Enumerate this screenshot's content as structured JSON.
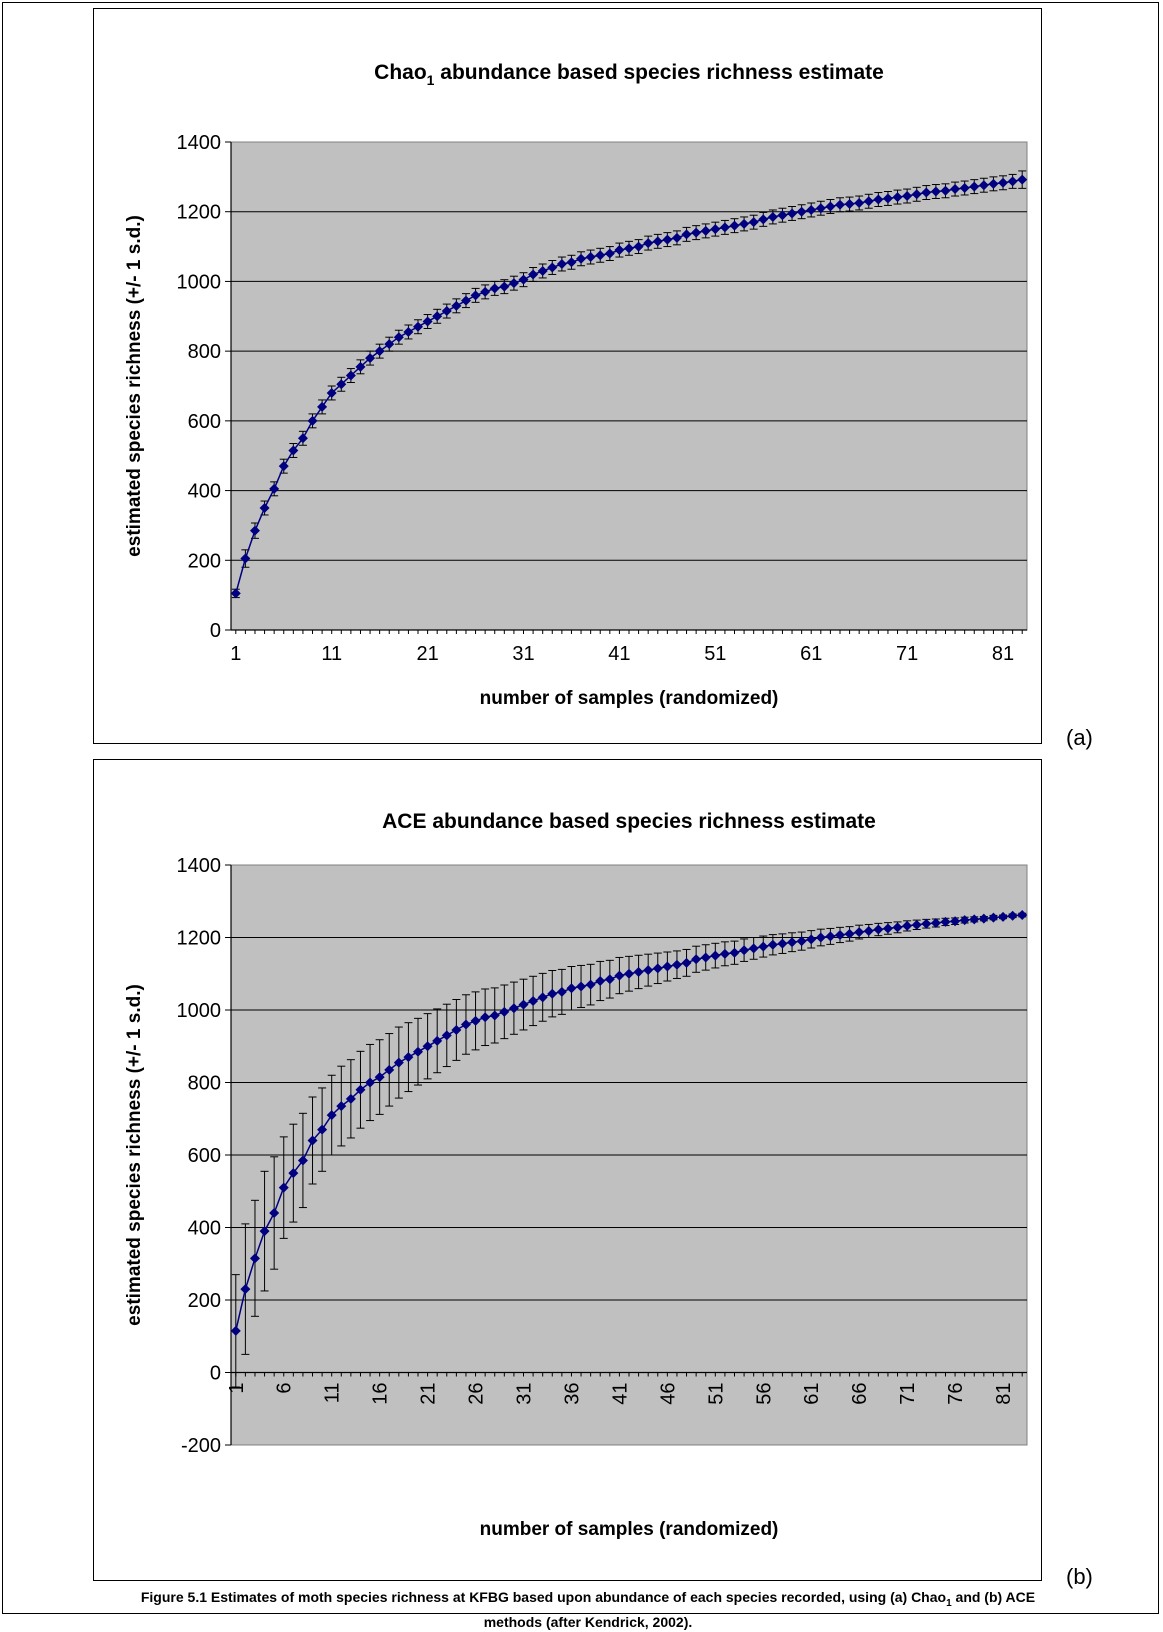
{
  "chart_data": [
    {
      "id": "a",
      "type": "line",
      "panel_label": "(a)",
      "title_main": "Chao",
      "title_sub": "1",
      "title_rest": " abundance based species richness estimate",
      "xlabel": "number of samples (randomized)",
      "ylabel": "estimated species richness (+/- 1 s.d.)",
      "ylim": [
        0,
        1400
      ],
      "yticks": [
        0,
        200,
        400,
        600,
        800,
        1000,
        1200,
        1400
      ],
      "xlim": [
        1,
        83
      ],
      "xtick_labels": [
        "1",
        "11",
        "21",
        "31",
        "41",
        "51",
        "61",
        "71",
        "81"
      ],
      "xtick_values": [
        1,
        11,
        21,
        31,
        41,
        51,
        61,
        71,
        81
      ],
      "grid": "horizontal",
      "plot_background": "#c0c0c0",
      "series_color": "#000080",
      "error_bars": "+/- 1 s.d.",
      "x": [
        1,
        2,
        3,
        4,
        5,
        6,
        7,
        8,
        9,
        10,
        11,
        12,
        13,
        14,
        15,
        16,
        17,
        18,
        19,
        20,
        21,
        22,
        23,
        24,
        25,
        26,
        27,
        28,
        29,
        30,
        31,
        32,
        33,
        34,
        35,
        36,
        37,
        38,
        39,
        40,
        41,
        42,
        43,
        44,
        45,
        46,
        47,
        48,
        49,
        50,
        51,
        52,
        53,
        54,
        55,
        56,
        57,
        58,
        59,
        60,
        61,
        62,
        63,
        64,
        65,
        66,
        67,
        68,
        69,
        70,
        71,
        72,
        73,
        74,
        75,
        76,
        77,
        78,
        79,
        80,
        81,
        82,
        83
      ],
      "values": [
        105,
        205,
        285,
        350,
        405,
        470,
        515,
        550,
        600,
        640,
        680,
        705,
        730,
        755,
        780,
        800,
        820,
        840,
        855,
        870,
        885,
        900,
        915,
        930,
        945,
        960,
        970,
        980,
        985,
        995,
        1005,
        1020,
        1030,
        1040,
        1050,
        1055,
        1065,
        1070,
        1075,
        1080,
        1090,
        1095,
        1100,
        1110,
        1115,
        1120,
        1125,
        1135,
        1140,
        1145,
        1150,
        1155,
        1160,
        1165,
        1170,
        1178,
        1185,
        1190,
        1195,
        1200,
        1205,
        1210,
        1215,
        1220,
        1222,
        1225,
        1230,
        1235,
        1238,
        1242,
        1245,
        1250,
        1255,
        1258,
        1260,
        1265,
        1268,
        1272,
        1276,
        1280,
        1283,
        1287,
        1292
      ],
      "sd": [
        12,
        25,
        22,
        20,
        20,
        20,
        20,
        20,
        20,
        20,
        20,
        20,
        20,
        20,
        20,
        20,
        20,
        20,
        20,
        20,
        20,
        20,
        20,
        20,
        20,
        20,
        20,
        20,
        20,
        20,
        20,
        20,
        20,
        20,
        20,
        20,
        20,
        20,
        20,
        20,
        20,
        20,
        20,
        20,
        20,
        20,
        20,
        20,
        20,
        20,
        20,
        20,
        20,
        20,
        20,
        20,
        20,
        20,
        20,
        20,
        20,
        20,
        20,
        20,
        20,
        20,
        20,
        20,
        20,
        20,
        20,
        20,
        20,
        20,
        20,
        20,
        20,
        20,
        20,
        20,
        20,
        20,
        25
      ]
    },
    {
      "id": "b",
      "type": "line",
      "panel_label": "(b)",
      "title_main": "ACE abundance based species richness estimate",
      "title_sub": "",
      "title_rest": "",
      "xlabel": "number of samples (randomized)",
      "ylabel": "estimated species richness (+/- 1 s.d.)",
      "ylim": [
        -200,
        1400
      ],
      "yticks": [
        -200,
        0,
        200,
        400,
        600,
        800,
        1000,
        1200,
        1400
      ],
      "xlim": [
        1,
        83
      ],
      "xtick_labels": [
        "1",
        "6",
        "11",
        "16",
        "21",
        "26",
        "31",
        "36",
        "41",
        "46",
        "51",
        "56",
        "61",
        "66",
        "71",
        "76",
        "81"
      ],
      "xtick_values": [
        1,
        6,
        11,
        16,
        21,
        26,
        31,
        36,
        41,
        46,
        51,
        56,
        61,
        66,
        71,
        76,
        81
      ],
      "grid": "horizontal",
      "plot_background": "#c0c0c0",
      "series_color": "#000080",
      "error_bars": "+/- 1 s.d.",
      "x": [
        1,
        2,
        3,
        4,
        5,
        6,
        7,
        8,
        9,
        10,
        11,
        12,
        13,
        14,
        15,
        16,
        17,
        18,
        19,
        20,
        21,
        22,
        23,
        24,
        25,
        26,
        27,
        28,
        29,
        30,
        31,
        32,
        33,
        34,
        35,
        36,
        37,
        38,
        39,
        40,
        41,
        42,
        43,
        44,
        45,
        46,
        47,
        48,
        49,
        50,
        51,
        52,
        53,
        54,
        55,
        56,
        57,
        58,
        59,
        60,
        61,
        62,
        63,
        64,
        65,
        66,
        67,
        68,
        69,
        70,
        71,
        72,
        73,
        74,
        75,
        76,
        77,
        78,
        79,
        80,
        81,
        82,
        83
      ],
      "values": [
        115,
        230,
        315,
        390,
        440,
        510,
        550,
        585,
        640,
        670,
        710,
        735,
        755,
        780,
        800,
        815,
        835,
        855,
        870,
        885,
        900,
        915,
        930,
        945,
        960,
        970,
        980,
        985,
        995,
        1005,
        1015,
        1025,
        1035,
        1045,
        1050,
        1060,
        1065,
        1070,
        1080,
        1085,
        1095,
        1100,
        1105,
        1110,
        1115,
        1120,
        1125,
        1130,
        1140,
        1145,
        1150,
        1155,
        1158,
        1165,
        1170,
        1175,
        1180,
        1183,
        1187,
        1190,
        1195,
        1200,
        1203,
        1207,
        1210,
        1215,
        1218,
        1222,
        1225,
        1228,
        1232,
        1235,
        1238,
        1240,
        1243,
        1245,
        1248,
        1250,
        1252,
        1255,
        1257,
        1260,
        1262
      ],
      "sd": [
        155,
        180,
        160,
        165,
        155,
        140,
        135,
        130,
        120,
        115,
        110,
        110,
        108,
        106,
        105,
        103,
        100,
        98,
        95,
        92,
        90,
        88,
        86,
        84,
        82,
        80,
        78,
        76,
        74,
        72,
        70,
        68,
        66,
        64,
        62,
        60,
        58,
        56,
        54,
        52,
        50,
        48,
        46,
        44,
        42,
        40,
        38,
        37,
        36,
        35,
        34,
        33,
        32,
        31,
        30,
        29,
        28,
        27,
        26,
        25,
        24,
        23,
        22,
        21,
        20,
        19,
        18,
        17,
        16,
        15,
        14,
        13,
        12,
        11,
        10,
        9,
        8,
        7,
        6,
        6,
        5,
        5,
        5
      ]
    }
  ],
  "caption": {
    "prefix": "Figure 5.1  Estimates of moth species richness at KFBG based upon abundance of each species recorded, using (a) Chao",
    "sub": "1",
    "suffix": " and (b) ACE methods (after Kendrick, 2002)."
  }
}
